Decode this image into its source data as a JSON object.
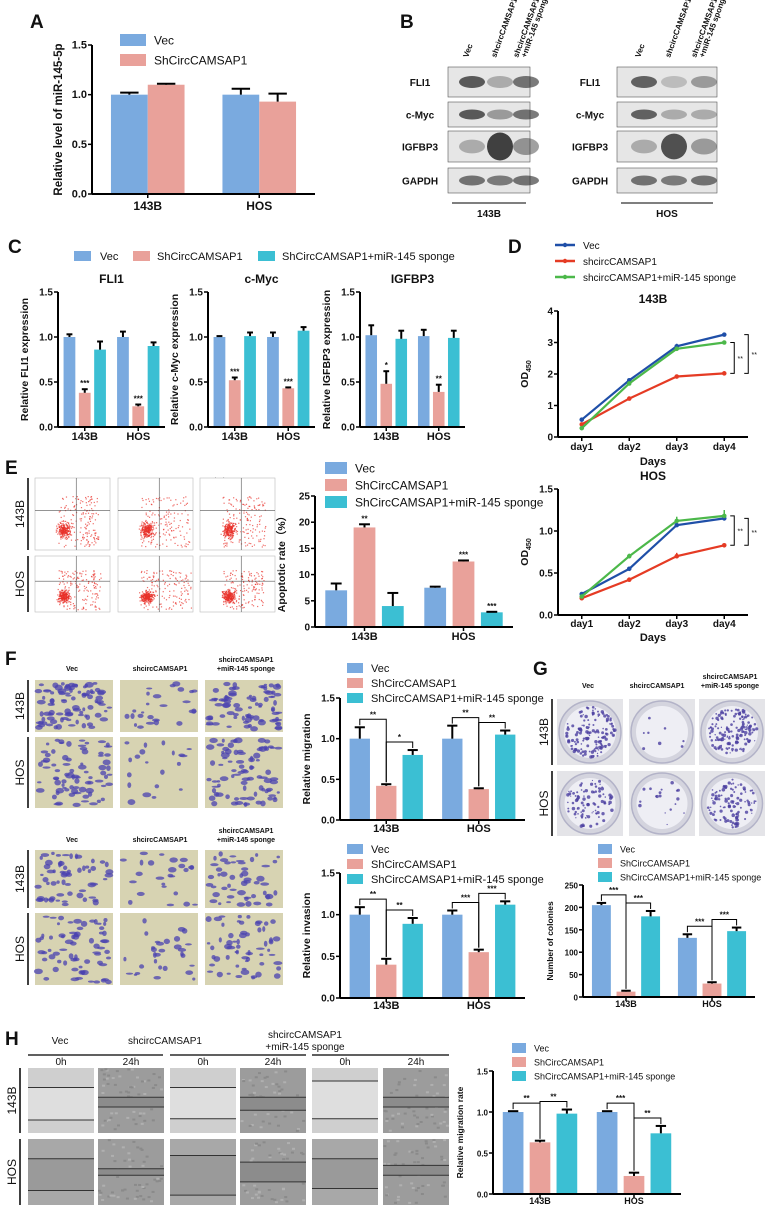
{
  "panel_labels": {
    "A": "A",
    "B": "B",
    "C": "C",
    "D": "D",
    "E": "E",
    "F": "F",
    "G": "G",
    "H": "H"
  },
  "conditions": {
    "vec": "Vec",
    "sh": "shcircCAMSAP1",
    "sponge_1": "shcircCAMSAP1",
    "sponge_2": "+miR-145 sponge"
  },
  "cell_lines": {
    "a": "143B",
    "b": "HOS"
  },
  "western_blot": {
    "lanes": [
      "Vec",
      "shcircCAMSAP1",
      "shcircCAMSAP1",
      "+miR-145 sponge"
    ],
    "proteins": [
      "FLI1",
      "c-Myc",
      "IGFBP3",
      "GAPDH"
    ],
    "groups": [
      "143B",
      "HOS"
    ],
    "band_intensity": {
      "143B": [
        [
          0.85,
          0.35,
          0.7
        ],
        [
          0.85,
          0.45,
          0.7
        ],
        [
          0.35,
          1.0,
          0.5
        ],
        [
          0.7,
          0.65,
          0.7
        ]
      ],
      "HOS": [
        [
          0.8,
          0.25,
          0.45
        ],
        [
          0.8,
          0.35,
          0.35
        ],
        [
          0.35,
          0.9,
          0.45
        ],
        [
          0.7,
          0.65,
          0.7
        ]
      ]
    }
  },
  "wound": {
    "times": [
      "0h",
      "24h"
    ]
  },
  "colors": {
    "vec": "#7aaadf",
    "sh": "#e9a19a",
    "sponge": "#3bbfd3",
    "line_vec": "#1f4fa8",
    "line_sh": "#e53b24",
    "line_sponge": "#4cb84a"
  },
  "chart_data": [
    {
      "id": "A",
      "type": "bar",
      "title": "",
      "ylabel": "Relative level of miR-145-5p",
      "categories": [
        "143B",
        "HOS"
      ],
      "ylim": [
        0,
        1.5
      ],
      "yticks": [
        "0.0",
        "0.5",
        "1.0",
        "1.5"
      ],
      "series": [
        {
          "name": "Vec",
          "color": "#7aaadf",
          "values": [
            1.0,
            1.0
          ],
          "errors": [
            0.02,
            0.06
          ]
        },
        {
          "name": "ShCircCAMSAP1",
          "color": "#e9a19a",
          "values": [
            1.1,
            0.93
          ],
          "errors": [
            0.01,
            0.08
          ]
        }
      ]
    },
    {
      "id": "C1",
      "type": "bar",
      "title": "FLI1",
      "ylabel": "Relative FLI1 expression",
      "categories": [
        "143B",
        "HOS"
      ],
      "ylim": [
        0,
        1.5
      ],
      "yticks": [
        "0.0",
        "0.5",
        "1.0",
        "1.5"
      ],
      "series": [
        {
          "name": "Vec",
          "color": "#7aaadf",
          "values": [
            1.0,
            1.0
          ],
          "errors": [
            0.03,
            0.06
          ]
        },
        {
          "name": "ShCircCAMSAP1",
          "color": "#e9a19a",
          "values": [
            0.38,
            0.23
          ],
          "errors": [
            0.04,
            0.02
          ],
          "stars": [
            "***",
            "***"
          ]
        },
        {
          "name": "ShCircCAMSAP1+miR-145 sponge",
          "color": "#3bbfd3",
          "values": [
            0.86,
            0.9
          ],
          "errors": [
            0.09,
            0.04
          ]
        }
      ]
    },
    {
      "id": "C2",
      "type": "bar",
      "title": "c-Myc",
      "ylabel": "Relative c-Myc expression",
      "categories": [
        "143B",
        "HOS"
      ],
      "ylim": [
        0,
        1.5
      ],
      "yticks": [
        "0.0",
        "0.5",
        "1.0",
        "1.5"
      ],
      "series": [
        {
          "name": "Vec",
          "color": "#7aaadf",
          "values": [
            1.0,
            1.0
          ],
          "errors": [
            0.01,
            0.05
          ]
        },
        {
          "name": "ShCircCAMSAP1",
          "color": "#e9a19a",
          "values": [
            0.52,
            0.43
          ],
          "errors": [
            0.03,
            0.01
          ],
          "stars": [
            "***",
            "***"
          ]
        },
        {
          "name": "ShCircCAMSAP1+miR-145 sponge",
          "color": "#3bbfd3",
          "values": [
            1.01,
            1.07
          ],
          "errors": [
            0.04,
            0.04
          ]
        }
      ]
    },
    {
      "id": "C3",
      "type": "bar",
      "title": "IGFBP3",
      "ylabel": "Relative IGFBP3 expression",
      "categories": [
        "143B",
        "HOS"
      ],
      "ylim": [
        0,
        1.5
      ],
      "yticks": [
        "0.0",
        "0.5",
        "1.0",
        "1.5"
      ],
      "series": [
        {
          "name": "Vec",
          "color": "#7aaadf",
          "values": [
            1.02,
            1.01
          ],
          "errors": [
            0.11,
            0.07
          ]
        },
        {
          "name": "ShCircCAMSAP1",
          "color": "#e9a19a",
          "values": [
            0.48,
            0.39
          ],
          "errors": [
            0.14,
            0.08
          ],
          "stars": [
            "*",
            "**"
          ]
        },
        {
          "name": "ShCircCAMSAP1+miR-145 sponge",
          "color": "#3bbfd3",
          "values": [
            0.98,
            0.99
          ],
          "errors": [
            0.09,
            0.08
          ]
        }
      ]
    },
    {
      "id": "D1",
      "type": "line",
      "title": "143B",
      "ylabel": "OD",
      "ylabel_sub": "450",
      "xlabel": "Days",
      "categories": [
        "day1",
        "day2",
        "day3",
        "day4"
      ],
      "ylim": [
        0,
        4
      ],
      "yticks": [
        "0",
        "1",
        "2",
        "3",
        "4"
      ],
      "series": [
        {
          "name": "Vec",
          "color": "#1f4fa8",
          "values": [
            0.55,
            1.8,
            2.88,
            3.25
          ],
          "errors": [
            0.03,
            0.05,
            0.08,
            0.03
          ]
        },
        {
          "name": "shcircCAMSAP1",
          "color": "#e53b24",
          "values": [
            0.4,
            1.22,
            1.92,
            2.02
          ],
          "errors": [
            0.03,
            0.03,
            0.03,
            0.07
          ]
        },
        {
          "name": "shcircCAMSAP1+miR-145 sponge",
          "color": "#4cb84a",
          "values": [
            0.28,
            1.7,
            2.8,
            3.0
          ],
          "errors": [
            0.03,
            0.05,
            0.05,
            0.03
          ]
        }
      ],
      "brackets": [
        {
          "from": 2,
          "to": 1,
          "label": "**"
        },
        {
          "from": 0,
          "to": 1,
          "label": "**"
        }
      ]
    },
    {
      "id": "D2",
      "type": "line",
      "title": "HOS",
      "ylabel": "OD",
      "ylabel_sub": "450",
      "xlabel": "Days",
      "categories": [
        "day1",
        "day2",
        "day3",
        "day4"
      ],
      "ylim": [
        0,
        1.5
      ],
      "yticks": [
        "0.0",
        "0.5",
        "1.0",
        "1.5"
      ],
      "series": [
        {
          "name": "Vec",
          "color": "#1f4fa8",
          "values": [
            0.25,
            0.55,
            1.07,
            1.15
          ],
          "errors": [
            0.01,
            0.02,
            0.03,
            0.03
          ]
        },
        {
          "name": "shcircCAMSAP1",
          "color": "#e53b24",
          "values": [
            0.2,
            0.42,
            0.7,
            0.83
          ],
          "errors": [
            0.01,
            0.02,
            0.04,
            0.02
          ]
        },
        {
          "name": "shcircCAMSAP1+miR-145 sponge",
          "color": "#4cb84a",
          "values": [
            0.22,
            0.7,
            1.12,
            1.18
          ],
          "errors": [
            0.01,
            0.03,
            0.05,
            0.07
          ]
        }
      ],
      "brackets": [
        {
          "from": 2,
          "to": 1,
          "label": "**"
        },
        {
          "from": 0,
          "to": 1,
          "label": "**"
        }
      ]
    },
    {
      "id": "E",
      "type": "bar",
      "title": "",
      "ylabel": "Apoptotic rate（%）",
      "categories": [
        "143B",
        "HOS"
      ],
      "ylim": [
        0,
        25
      ],
      "yticks": [
        "0",
        "5",
        "10",
        "15",
        "20",
        "25"
      ],
      "series": [
        {
          "name": "Vec",
          "color": "#7aaadf",
          "values": [
            7.0,
            7.5
          ],
          "errors": [
            1.3,
            0.2
          ]
        },
        {
          "name": "ShCircCAMSAP1",
          "color": "#e9a19a",
          "values": [
            19.0,
            12.5
          ],
          "errors": [
            0.6,
            0.2
          ],
          "stars": [
            "**",
            "***"
          ]
        },
        {
          "name": "ShCircCAMSAP1+miR-145 sponge",
          "color": "#3bbfd3",
          "values": [
            4.0,
            2.8
          ],
          "errors": [
            2.5,
            0.1
          ],
          "stars": [
            "",
            "***"
          ]
        }
      ]
    },
    {
      "id": "F1",
      "type": "bar",
      "title": "",
      "ylabel": "Relative migration",
      "categories": [
        "143B",
        "HOS"
      ],
      "ylim": [
        0,
        1.5
      ],
      "yticks": [
        "0.0",
        "0.5",
        "1.0",
        "1.5"
      ],
      "series": [
        {
          "name": "Vec",
          "color": "#7aaadf",
          "values": [
            1.0,
            1.0
          ],
          "errors": [
            0.14,
            0.16
          ]
        },
        {
          "name": "ShCircCAMSAP1",
          "color": "#e9a19a",
          "values": [
            0.42,
            0.38
          ],
          "errors": [
            0.02,
            0.01
          ]
        },
        {
          "name": "ShCircCAMSAP1+miR-145 sponge",
          "color": "#3bbfd3",
          "values": [
            0.8,
            1.05
          ],
          "errors": [
            0.06,
            0.05
          ]
        }
      ],
      "brackets": [
        {
          "cat": 0,
          "from": 0,
          "to": 1,
          "label": "**"
        },
        {
          "cat": 0,
          "from": 1,
          "to": 2,
          "label": "*"
        },
        {
          "cat": 1,
          "from": 0,
          "to": 1,
          "label": "**"
        },
        {
          "cat": 1,
          "from": 1,
          "to": 2,
          "label": "**"
        }
      ]
    },
    {
      "id": "F2",
      "type": "bar",
      "title": "",
      "ylabel": "Relative invasion",
      "categories": [
        "143B",
        "HOS"
      ],
      "ylim": [
        0,
        1.5
      ],
      "yticks": [
        "0.0",
        "0.5",
        "1.0",
        "1.5"
      ],
      "series": [
        {
          "name": "Vec",
          "color": "#7aaadf",
          "values": [
            1.0,
            1.0
          ],
          "errors": [
            0.09,
            0.05
          ]
        },
        {
          "name": "ShCircCAMSAP1",
          "color": "#e9a19a",
          "values": [
            0.4,
            0.55
          ],
          "errors": [
            0.07,
            0.03
          ]
        },
        {
          "name": "ShCircCAMSAP1+miR-145 sponge",
          "color": "#3bbfd3",
          "values": [
            0.89,
            1.12
          ],
          "errors": [
            0.07,
            0.04
          ]
        }
      ],
      "brackets": [
        {
          "cat": 0,
          "from": 0,
          "to": 1,
          "label": "**"
        },
        {
          "cat": 0,
          "from": 1,
          "to": 2,
          "label": "**"
        },
        {
          "cat": 1,
          "from": 0,
          "to": 1,
          "label": "***"
        },
        {
          "cat": 1,
          "from": 1,
          "to": 2,
          "label": "***"
        }
      ]
    },
    {
      "id": "G",
      "type": "bar",
      "title": "",
      "ylabel": "Number of colonies",
      "categories": [
        "143B",
        "HOS"
      ],
      "ylim": [
        0,
        250
      ],
      "yticks": [
        "0",
        "50",
        "100",
        "150",
        "200",
        "250"
      ],
      "series": [
        {
          "name": "Vec",
          "color": "#7aaadf",
          "values": [
            205,
            132
          ],
          "errors": [
            5,
            8
          ]
        },
        {
          "name": "ShCircCAMSAP1",
          "color": "#e9a19a",
          "values": [
            12,
            30
          ],
          "errors": [
            2,
            3
          ]
        },
        {
          "name": "ShCircCAMSAP1+miR-145 sponge",
          "color": "#3bbfd3",
          "values": [
            180,
            147
          ],
          "errors": [
            12,
            8
          ]
        }
      ],
      "brackets": [
        {
          "cat": 0,
          "from": 0,
          "to": 1,
          "label": "***"
        },
        {
          "cat": 0,
          "from": 1,
          "to": 2,
          "label": "***"
        },
        {
          "cat": 1,
          "from": 0,
          "to": 1,
          "label": "***"
        },
        {
          "cat": 1,
          "from": 1,
          "to": 2,
          "label": "***"
        }
      ]
    },
    {
      "id": "H",
      "type": "bar",
      "title": "",
      "ylabel": "Relative migration rate",
      "categories": [
        "143B",
        "HOS"
      ],
      "ylim": [
        0,
        1.5
      ],
      "yticks": [
        "0.0",
        "0.5",
        "1.0",
        "1.5"
      ],
      "series": [
        {
          "name": "Vec",
          "color": "#7aaadf",
          "values": [
            1.0,
            1.0
          ],
          "errors": [
            0.01,
            0.01
          ]
        },
        {
          "name": "ShCircCAMSAP1",
          "color": "#e9a19a",
          "values": [
            0.63,
            0.22
          ],
          "errors": [
            0.02,
            0.04
          ]
        },
        {
          "name": "ShCircCAMSAP1+miR-145 sponge",
          "color": "#3bbfd3",
          "values": [
            0.98,
            0.74
          ],
          "errors": [
            0.05,
            0.09
          ]
        }
      ],
      "brackets": [
        {
          "cat": 0,
          "from": 0,
          "to": 1,
          "label": "**"
        },
        {
          "cat": 0,
          "from": 1,
          "to": 2,
          "label": "**"
        },
        {
          "cat": 1,
          "from": 0,
          "to": 1,
          "label": "***"
        },
        {
          "cat": 1,
          "from": 1,
          "to": 2,
          "label": "**"
        }
      ]
    }
  ]
}
